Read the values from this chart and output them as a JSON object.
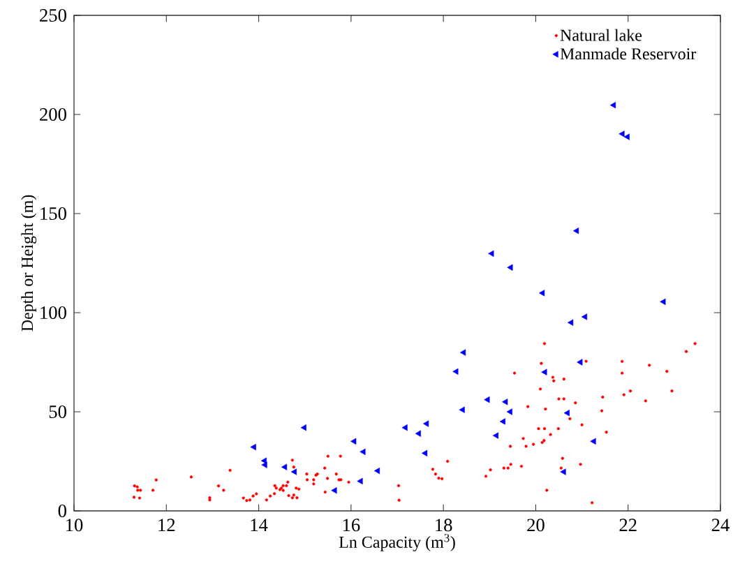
{
  "chart_data": {
    "type": "scatter",
    "xlabel": "Ln Capacity (m$^{3}$)",
    "ylabel": "Depth or Height (m)",
    "xlim": [
      10,
      24
    ],
    "xticks": [
      10,
      12,
      14,
      16,
      18,
      20,
      22,
      24
    ],
    "ylim": [
      0,
      250
    ],
    "yticks": [
      0,
      50,
      100,
      150,
      200,
      250
    ],
    "grid": false,
    "legend": "top right",
    "series": [
      {
        "name": "Natural lake",
        "color": "#ff0000",
        "marker": "circle",
        "x": [
          11.3,
          11.31,
          11.37,
          11.38,
          11.44,
          11.42,
          11.71,
          11.78,
          12.54,
          12.94,
          12.94,
          13.13,
          13.24,
          13.38,
          13.67,
          13.74,
          13.81,
          13.88,
          13.95,
          14.17,
          14.25,
          14.34,
          14.35,
          14.38,
          14.46,
          14.49,
          14.53,
          14.53,
          14.6,
          14.63,
          14.65,
          14.73,
          14.76,
          14.73,
          14.76,
          14.83,
          14.81,
          14.87,
          15.04,
          15.05,
          15.19,
          15.19,
          15.24,
          15.27,
          15.43,
          15.44,
          15.49,
          15.5,
          15.68,
          15.74,
          15.78,
          15.77,
          15.95,
          17.03,
          17.04,
          17.77,
          17.83,
          17.9,
          17.97,
          18.09,
          18.92,
          19.02,
          19.31,
          19.4,
          19.46,
          19.69,
          19.45,
          19.54,
          19.73,
          19.79,
          19.83,
          19.95,
          20.06,
          20.1,
          20.12,
          20.14,
          20.18,
          20.19,
          20.19,
          20.21,
          20.24,
          20.32,
          20.37,
          20.39,
          20.49,
          20.5,
          20.61,
          20.61,
          20.55,
          20.58,
          20.74,
          20.86,
          21.0,
          20.97,
          21.09,
          21.22,
          21.43,
          21.45,
          21.53,
          21.87,
          21.87,
          21.91,
          22.05,
          22.38,
          22.46,
          22.84,
          22.95,
          23.26,
          23.45
        ],
        "values": [
          6.9,
          12.6,
          12.1,
          10.4,
          10.4,
          6.5,
          10.4,
          15.6,
          17.1,
          6.6,
          5.5,
          12.6,
          10.4,
          20.5,
          6.5,
          5.2,
          5.5,
          7.5,
          8.6,
          5.5,
          7.5,
          8.7,
          12.7,
          11.5,
          10.7,
          11.5,
          12.7,
          10.3,
          12.7,
          14.5,
          7.7,
          25.6,
          22.1,
          6.6,
          8.0,
          6.6,
          11.5,
          11.0,
          18.6,
          15.7,
          15.7,
          13.6,
          18.0,
          18.6,
          21.6,
          9.5,
          16.4,
          27.6,
          18.6,
          15.7,
          15.7,
          27.6,
          14.5,
          12.7,
          5.4,
          21.0,
          18.6,
          16.5,
          16.2,
          25.0,
          17.5,
          20.7,
          21.6,
          21.6,
          23.5,
          22.5,
          32.6,
          69.5,
          36.5,
          32.6,
          52.6,
          33.6,
          41.5,
          61.5,
          74.4,
          34.5,
          35.5,
          84.4,
          41.5,
          51.4,
          10.4,
          38.5,
          67.4,
          65.6,
          41.5,
          56.5,
          56.5,
          66.5,
          21.6,
          26.5,
          46.5,
          54.5,
          43.4,
          23.5,
          75.5,
          4.1,
          50.5,
          57.4,
          39.7,
          75.4,
          69.5,
          58.6,
          60.5,
          55.5,
          73.5,
          70.4,
          60.5,
          80.4,
          84.4
        ]
      },
      {
        "name": "Manmade Reservoir",
        "color": "#0000ff",
        "marker": "triangle",
        "x": [
          13.9,
          14.13,
          14.14,
          14.57,
          14.78,
          14.99,
          15.65,
          16.07,
          16.21,
          16.27,
          16.58,
          17.18,
          17.47,
          17.61,
          17.64,
          18.28,
          18.42,
          18.44,
          18.96,
          19.05,
          19.15,
          19.3,
          19.35,
          19.45,
          19.46,
          20.15,
          20.2,
          20.61,
          20.69,
          20.77,
          20.89,
          20.97,
          21.07,
          21.26,
          21.69,
          21.88,
          21.99,
          22.77
        ],
        "values": [
          32.2,
          25.3,
          23.2,
          22.1,
          19.7,
          42.0,
          10.3,
          35.1,
          15.0,
          29.8,
          20.2,
          42.0,
          39.0,
          29.1,
          44.0,
          70.3,
          51.0,
          79.9,
          56.1,
          129.8,
          38.0,
          45.1,
          55.0,
          50.0,
          122.8,
          109.9,
          70.0,
          19.7,
          49.4,
          95.0,
          141.3,
          75.0,
          97.9,
          35.1,
          204.7,
          190.2,
          188.7,
          105.5
        ]
      }
    ]
  }
}
